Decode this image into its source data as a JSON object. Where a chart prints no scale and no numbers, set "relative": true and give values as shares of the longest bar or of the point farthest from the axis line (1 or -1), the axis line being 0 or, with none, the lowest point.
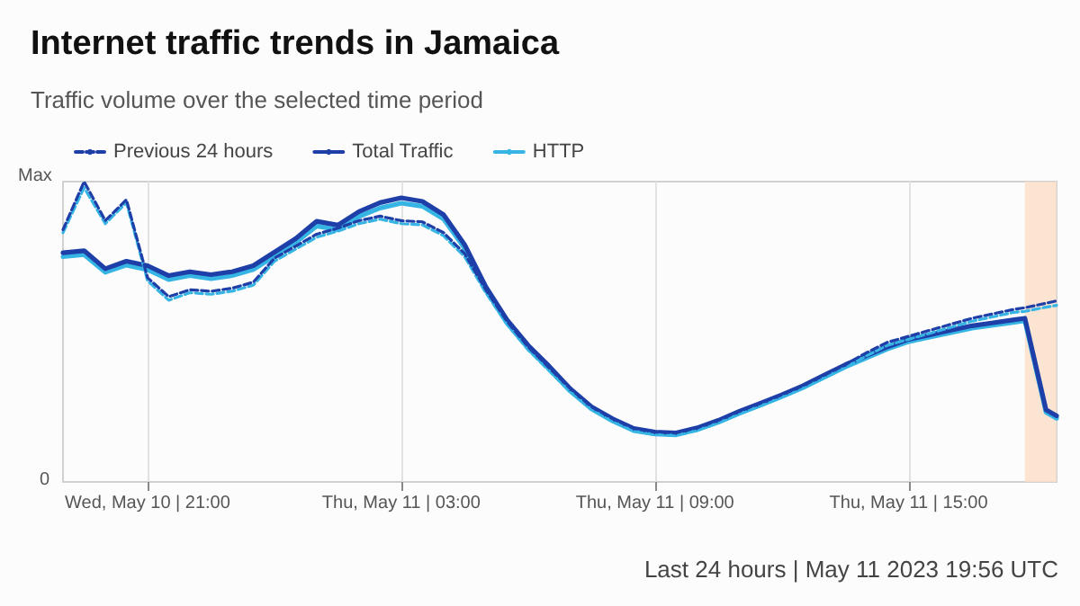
{
  "chart_data": {
    "type": "line",
    "title": "Internet traffic trends in Jamaica",
    "subtitle": "Traffic volume over the selected time period",
    "relative": true,
    "grid": "x",
    "legend": "top left",
    "marker": "none",
    "annotations": [
      "Max",
      "0",
      "Last 24 hours | May 11 2023 19:56 UTC"
    ],
    "x": [
      "2023-05-10T19:00",
      "2023-05-10T19:30",
      "2023-05-10T20:00",
      "2023-05-10T20:30",
      "2023-05-10T21:00",
      "2023-05-10T21:30",
      "2023-05-10T22:00",
      "2023-05-10T22:30",
      "2023-05-10T23:00",
      "2023-05-10T23:30",
      "2023-05-11T00:00",
      "2023-05-11T00:30",
      "2023-05-11T01:00",
      "2023-05-11T01:30",
      "2023-05-11T02:00",
      "2023-05-11T02:30",
      "2023-05-11T03:00",
      "2023-05-11T03:30",
      "2023-05-11T04:00",
      "2023-05-11T04:30",
      "2023-05-11T05:00",
      "2023-05-11T05:30",
      "2023-05-11T06:00",
      "2023-05-11T06:30",
      "2023-05-11T07:00",
      "2023-05-11T07:30",
      "2023-05-11T08:00",
      "2023-05-11T08:30",
      "2023-05-11T09:00",
      "2023-05-11T09:30",
      "2023-05-11T10:00",
      "2023-05-11T10:30",
      "2023-05-11T11:00",
      "2023-05-11T11:30",
      "2023-05-11T12:00",
      "2023-05-11T12:30",
      "2023-05-11T13:00",
      "2023-05-11T13:30",
      "2023-05-11T14:00",
      "2023-05-11T14:30",
      "2023-05-11T15:00",
      "2023-05-11T15:30",
      "2023-05-11T16:00",
      "2023-05-11T16:30",
      "2023-05-11T17:00",
      "2023-05-11T17:30",
      "2023-05-11T17:45",
      "2023-05-11T18:15",
      "2023-05-11T18:30"
    ],
    "xlim": [
      "2023-05-10T19:00",
      "2023-05-11T18:30"
    ],
    "xticks": [
      {
        "value": "2023-05-10T21:00",
        "label": "Wed, May 10 | 21:00"
      },
      {
        "value": "2023-05-11T03:00",
        "label": "Thu, May 11 | 03:00"
      },
      {
        "value": "2023-05-11T09:00",
        "label": "Thu, May 11 | 09:00"
      },
      {
        "value": "2023-05-11T15:00",
        "label": "Thu, May 11 | 15:00"
      }
    ],
    "bands": [
      {
        "axis": "x",
        "from": "2023-05-11T17:45",
        "to": "2023-05-11T18:30",
        "color": "#fbdfca"
      }
    ],
    "series": [
      {
        "name": "Previous 24 hours",
        "color": "#1e3fa8",
        "line_style": "dashed",
        "values": [
          0.84,
          1.0,
          0.87,
          0.94,
          0.68,
          0.617,
          0.64,
          0.635,
          0.645,
          0.665,
          0.745,
          0.785,
          0.825,
          0.845,
          0.87,
          0.885,
          0.87,
          0.866,
          0.83,
          0.76,
          0.64,
          0.535,
          0.45,
          0.38,
          0.31,
          0.25,
          0.21,
          0.178,
          0.166,
          0.163,
          0.18,
          0.205,
          0.235,
          0.262,
          0.29,
          0.32,
          0.355,
          0.39,
          0.43,
          0.465,
          0.485,
          0.505,
          0.525,
          0.545,
          0.56,
          0.575,
          0.58,
          0.595,
          0.603
        ]
      },
      {
        "color": "#36b5e5",
        "line_style": "dashed",
        "values": [
          0.83,
          0.98,
          0.86,
          0.93,
          0.67,
          0.605,
          0.63,
          0.625,
          0.635,
          0.655,
          0.735,
          0.775,
          0.815,
          0.835,
          0.86,
          0.875,
          0.86,
          0.856,
          0.82,
          0.75,
          0.63,
          0.525,
          0.44,
          0.37,
          0.3,
          0.242,
          0.202,
          0.17,
          0.158,
          0.156,
          0.172,
          0.197,
          0.227,
          0.254,
          0.282,
          0.312,
          0.347,
          0.382,
          0.42,
          0.455,
          0.475,
          0.495,
          0.515,
          0.535,
          0.55,
          0.565,
          0.568,
          0.582,
          0.588
        ]
      },
      {
        "name": "Total Traffic",
        "color": "#1e3fa8",
        "line_style": "solid",
        "values": [
          0.763,
          0.77,
          0.71,
          0.735,
          0.72,
          0.687,
          0.7,
          0.69,
          0.7,
          0.72,
          0.765,
          0.81,
          0.868,
          0.855,
          0.9,
          0.93,
          0.946,
          0.934,
          0.89,
          0.79,
          0.65,
          0.54,
          0.455,
          0.385,
          0.31,
          0.25,
          0.21,
          0.178,
          0.166,
          0.163,
          0.18,
          0.205,
          0.235,
          0.262,
          0.29,
          0.32,
          0.355,
          0.39,
          0.42,
          0.45,
          0.475,
          0.49,
          0.505,
          0.52,
          0.53,
          0.54,
          0.545,
          0.24,
          0.22
        ]
      },
      {
        "name": "HTTP",
        "color": "#36b5e5",
        "line_style": "solid",
        "values": [
          0.75,
          0.757,
          0.698,
          0.722,
          0.707,
          0.674,
          0.687,
          0.677,
          0.687,
          0.707,
          0.752,
          0.797,
          0.852,
          0.84,
          0.884,
          0.912,
          0.928,
          0.918,
          0.876,
          0.778,
          0.64,
          0.53,
          0.446,
          0.376,
          0.302,
          0.243,
          0.203,
          0.171,
          0.16,
          0.157,
          0.174,
          0.199,
          0.229,
          0.256,
          0.284,
          0.314,
          0.348,
          0.383,
          0.413,
          0.443,
          0.467,
          0.482,
          0.497,
          0.512,
          0.522,
          0.532,
          0.537,
          0.232,
          0.212
        ]
      }
    ]
  }
}
